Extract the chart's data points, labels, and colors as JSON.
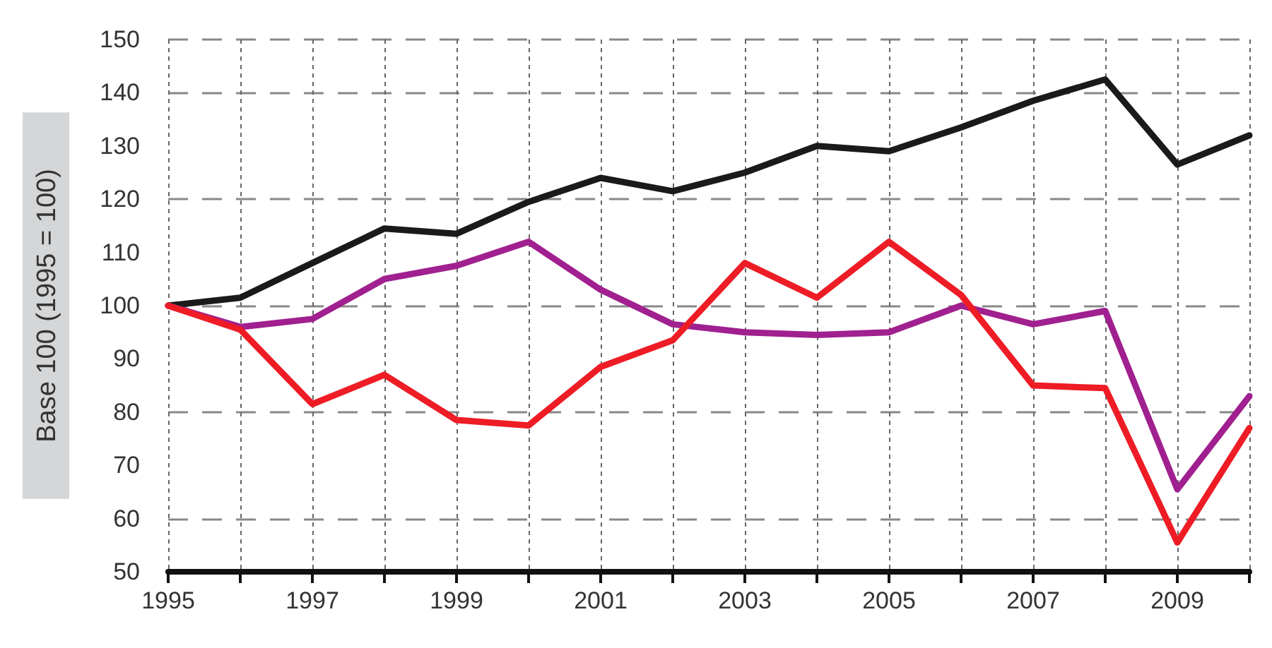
{
  "chart_data": {
    "type": "line",
    "ylabel": "Base 100 (1995 = 100)",
    "x": [
      1995,
      1996,
      1997,
      1998,
      1999,
      2000,
      2001,
      2002,
      2003,
      2004,
      2005,
      2006,
      2007,
      2008,
      2009,
      2010
    ],
    "series": [
      {
        "color": "#1a1a1a",
        "values": [
          100,
          101.5,
          108,
          114.5,
          113.5,
          119.5,
          124,
          121.5,
          125,
          130,
          129,
          133.5,
          138.5,
          142.5,
          126.5,
          132
        ]
      },
      {
        "color": "#a0208f",
        "values": [
          100,
          96,
          97.5,
          105,
          107.5,
          112,
          103,
          96.5,
          95,
          94.5,
          95,
          100,
          96.5,
          99,
          65.5,
          83
        ]
      },
      {
        "color": "#ee1c25",
        "values": [
          100,
          95.5,
          81.5,
          87,
          78.5,
          77.5,
          88.5,
          93.5,
          108,
          101.5,
          112,
          102,
          85,
          84.5,
          55.5,
          77
        ]
      }
    ],
    "xlim": [
      1995,
      2010
    ],
    "xticks": [
      1995,
      {
        "value": 1996,
        "label": null
      },
      1997,
      {
        "value": 1998,
        "label": null
      },
      1999,
      {
        "value": 2000,
        "label": null
      },
      2001,
      {
        "value": 2002,
        "label": null
      },
      2003,
      {
        "value": 2004,
        "label": null
      },
      2005,
      {
        "value": 2006,
        "label": null
      },
      2007,
      {
        "value": 2008,
        "label": null
      },
      2009,
      {
        "value": 2010,
        "label": null
      }
    ],
    "ylim": [
      50,
      150
    ],
    "yticks": [
      50,
      60,
      70,
      80,
      90,
      100,
      110,
      120,
      130,
      140,
      150
    ],
    "grid": true,
    "marker": "none",
    "line_style": "solid"
  }
}
